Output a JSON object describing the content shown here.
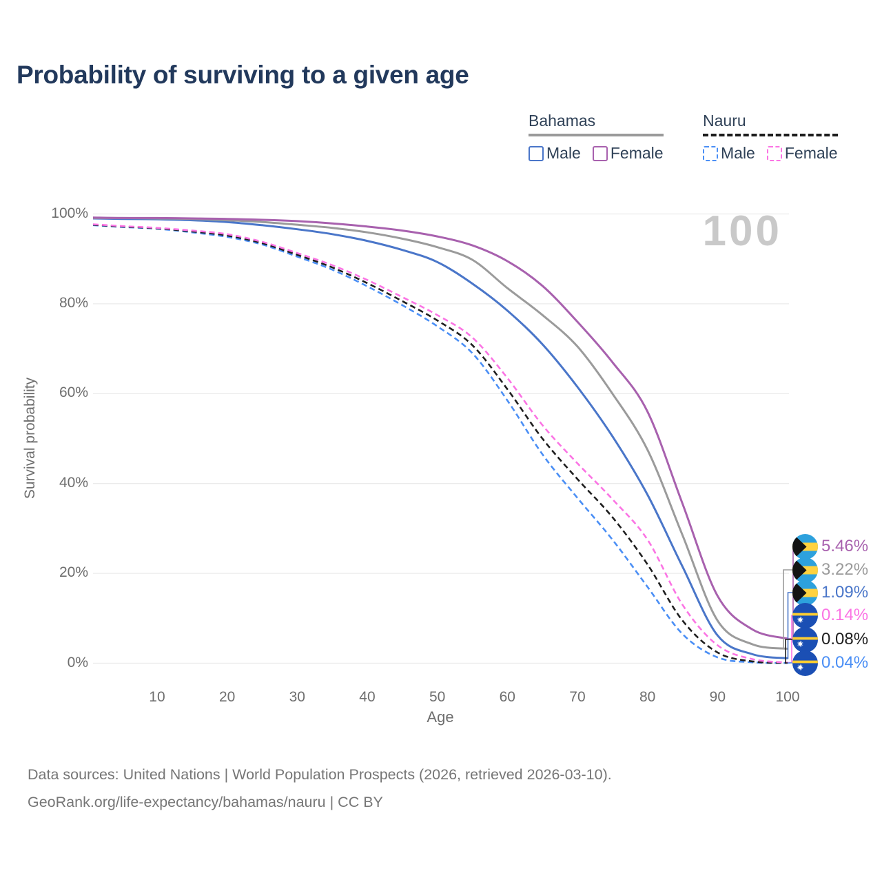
{
  "title": "Probability of surviving to a given age",
  "watermark": "100",
  "legend": {
    "groups": [
      {
        "name": "Bahamas",
        "line_style": "solid",
        "underline_color": "#9a9a9a",
        "items": [
          {
            "label": "Male",
            "color": "#4a76c9"
          },
          {
            "label": "Female",
            "color": "#a861ae"
          }
        ]
      },
      {
        "name": "Nauru",
        "line_style": "dashed",
        "underline_color": "#1c1c1c",
        "items": [
          {
            "label": "Male",
            "color": "#4b8ff5"
          },
          {
            "label": "Female",
            "color": "#fb74e4"
          }
        ]
      }
    ]
  },
  "chart_data": {
    "type": "line",
    "title": "Probability of surviving to a given age",
    "xlabel": "Age",
    "ylabel": "Survival probability",
    "xlim": [
      0,
      100
    ],
    "ylim": [
      0,
      100
    ],
    "grid": "horizontal",
    "legend_position": "top-right",
    "x_ticks": [
      10,
      20,
      30,
      40,
      50,
      60,
      70,
      80,
      90,
      100
    ],
    "y_ticks": [
      0,
      20,
      40,
      60,
      80,
      100
    ],
    "y_tick_format": "percent",
    "x": [
      0,
      5,
      10,
      15,
      20,
      25,
      30,
      35,
      40,
      45,
      50,
      55,
      60,
      65,
      70,
      75,
      80,
      85,
      90,
      95,
      100
    ],
    "series": [
      {
        "name": "Bahamas Female",
        "country": "Bahamas",
        "sex": "Female",
        "style": "solid",
        "color": "#a861ae",
        "flag": "bahamas",
        "end_label": "5.46%",
        "end_value": 5.46,
        "values": [
          99.2,
          99.1,
          99.1,
          99.0,
          98.9,
          98.7,
          98.4,
          97.9,
          97.2,
          96.3,
          95.0,
          93.0,
          89.5,
          84.0,
          76.0,
          67.0,
          56.0,
          35.5,
          15.0,
          7.5,
          5.46
        ]
      },
      {
        "name": "Bahamas both sexes",
        "country": "Bahamas",
        "sex": "Both",
        "style": "solid",
        "color": "#9b9b9b",
        "flag": "bahamas",
        "end_label": "3.22%",
        "end_value": 3.22,
        "values": [
          99.1,
          99.1,
          99.0,
          98.9,
          98.6,
          98.2,
          97.6,
          96.9,
          95.9,
          94.5,
          92.6,
          89.8,
          83.5,
          77.5,
          70.5,
          60.0,
          47.5,
          28.5,
          9.5,
          4.2,
          3.22
        ]
      },
      {
        "name": "Bahamas Male",
        "country": "Bahamas",
        "sex": "Male",
        "style": "solid",
        "color": "#4a76c9",
        "flag": "bahamas",
        "end_label": "1.09%",
        "end_value": 1.09,
        "values": [
          99.0,
          98.9,
          98.8,
          98.6,
          98.2,
          97.5,
          96.6,
          95.5,
          94.0,
          92.0,
          89.3,
          84.5,
          78.5,
          71.0,
          61.5,
          50.5,
          37.5,
          21.5,
          6.2,
          2.0,
          1.09
        ]
      },
      {
        "name": "Nauru Female",
        "country": "Nauru",
        "sex": "Female",
        "style": "dashed",
        "color": "#fb74e4",
        "flag": "nauru",
        "end_label": "0.14%",
        "end_value": 0.14,
        "values": [
          97.7,
          97.3,
          96.9,
          96.3,
          95.5,
          93.8,
          91.3,
          88.6,
          85.3,
          81.5,
          77.5,
          72.5,
          63.5,
          53.0,
          44.5,
          36.5,
          27.5,
          13.0,
          4.0,
          0.9,
          0.14
        ]
      },
      {
        "name": "Nauru both sexes",
        "country": "Nauru",
        "sex": "Both",
        "style": "dashed",
        "color": "#1f1f1f",
        "flag": "nauru",
        "end_label": "0.08%",
        "end_value": 0.08,
        "values": [
          97.6,
          97.2,
          96.8,
          96.1,
          95.2,
          93.5,
          90.9,
          88.1,
          84.6,
          80.6,
          76.3,
          70.8,
          61.0,
          50.0,
          41.0,
          32.5,
          22.0,
          9.5,
          2.4,
          0.4,
          0.08
        ]
      },
      {
        "name": "Nauru Male",
        "country": "Nauru",
        "sex": "Male",
        "style": "dashed",
        "color": "#4b8ff5",
        "flag": "nauru",
        "end_label": "0.04%",
        "end_value": 0.04,
        "values": [
          97.5,
          97.1,
          96.7,
          95.9,
          94.9,
          93.2,
          90.5,
          87.6,
          83.9,
          79.7,
          75.0,
          69.0,
          58.5,
          46.5,
          36.8,
          27.5,
          17.0,
          6.5,
          1.3,
          0.2,
          0.04
        ]
      }
    ]
  },
  "footer": {
    "line1": "Data sources: United Nations | World Population Prospects (2026, retrieved 2026-03-10).",
    "line2": "GeoRank.org/life-expectancy/bahamas/nauru | CC BY"
  }
}
